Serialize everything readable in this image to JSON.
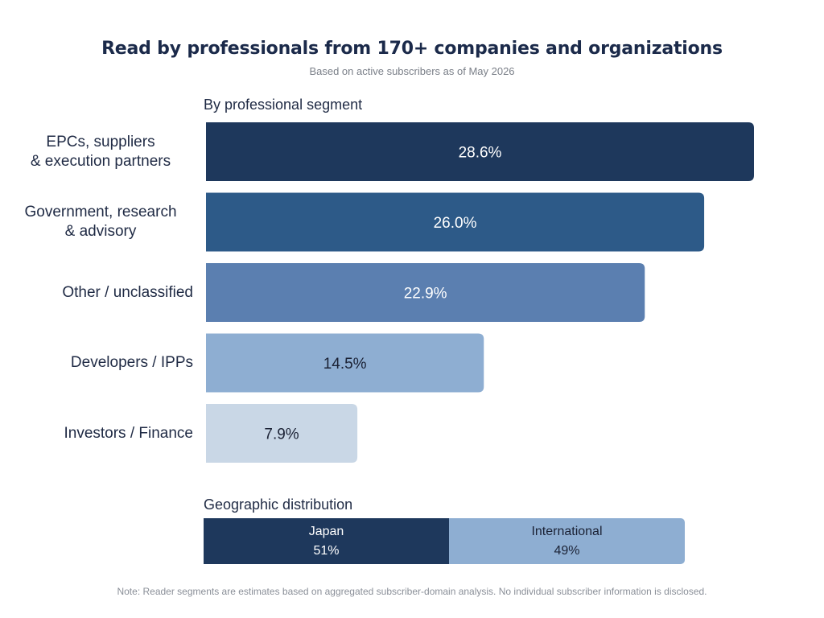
{
  "title": "Read by professionals from 170+ companies and organizations",
  "subtitle": "Based on active subscribers as of May 2026",
  "segment_section_label": "By professional segment",
  "geo_section_label": "Geographic distribution",
  "note": "Note: Reader segments are estimates based on aggregated subscriber-domain analysis. No individual subscriber information is disclosed.",
  "chart_data": [
    {
      "type": "bar",
      "orientation": "horizontal",
      "title": "By professional segment",
      "categories": [
        "EPCs, suppliers\n& execution partners",
        "Government, research\n& advisory",
        "Other / unclassified",
        "Developers / IPPs",
        "Investors / Finance"
      ],
      "values": [
        28.6,
        26.0,
        22.9,
        14.5,
        7.9
      ],
      "value_labels": [
        "28.6%",
        "26.0%",
        "22.9%",
        "14.5%",
        "7.9%"
      ],
      "unit": "%",
      "colors": [
        "#1e385c",
        "#2d5a88",
        "#5b7fb0",
        "#8eaed2",
        "#c9d7e6"
      ],
      "label_colors": [
        "#ffffff",
        "#ffffff",
        "#ffffff",
        "#1b2235",
        "#1b2235"
      ],
      "xlim": [
        0,
        28.6
      ],
      "grid": false
    },
    {
      "type": "bar",
      "orientation": "horizontal-stacked",
      "title": "Geographic distribution",
      "series": [
        {
          "name": "Japan",
          "value": 51,
          "label": "51%",
          "color": "#1e385c",
          "text_color": "#ffffff"
        },
        {
          "name": "International",
          "value": 49,
          "label": "49%",
          "color": "#8eaed2",
          "text_color": "#1b2235"
        }
      ]
    }
  ]
}
